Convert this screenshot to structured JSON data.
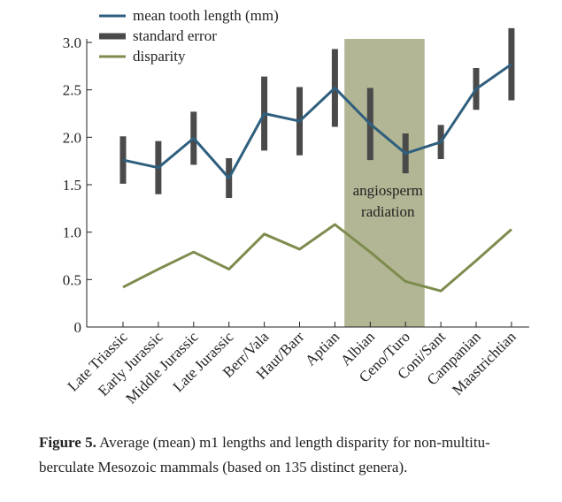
{
  "chart_data": {
    "type": "line",
    "categories": [
      "Late Triassic",
      "Early Jurassic",
      "Middle Jurassic",
      "Late Jurassic",
      "Berr/Vala",
      "Haut/Barr",
      "Aptian",
      "Albian",
      "Ceno/Turo",
      "Coni/Sant",
      "Campanian",
      "Maastrichtian"
    ],
    "series": [
      {
        "name": "mean tooth length (mm)",
        "color": "#2f5f7e",
        "values": [
          1.76,
          1.68,
          1.99,
          1.57,
          2.25,
          2.17,
          2.52,
          2.14,
          1.83,
          1.95,
          2.51,
          2.77
        ]
      },
      {
        "name": "standard error",
        "color": "#4a4a4a",
        "kind": "errorbar",
        "values": [
          0.25,
          0.28,
          0.28,
          0.21,
          0.39,
          0.36,
          0.41,
          0.38,
          0.21,
          0.18,
          0.22,
          0.38
        ]
      },
      {
        "name": "disparity",
        "color": "#7d8c4e",
        "values": [
          0.42,
          0.61,
          0.79,
          0.61,
          0.98,
          0.82,
          1.08,
          0.79,
          0.48,
          0.38,
          0.7,
          1.03
        ]
      }
    ],
    "ylim": [
      0,
      3.0
    ],
    "yticks": [
      0,
      0.5,
      {
        "value": 1.0,
        "label": "1.0"
      },
      1.5,
      {
        "value": 2.0,
        "label": "2.0"
      },
      2.5,
      {
        "value": 3.0,
        "label": "3.0"
      }
    ],
    "annotation": {
      "text": [
        "angiosperm",
        "radiation"
      ],
      "span": [
        "Albian",
        "Ceno/Turo"
      ],
      "color": "#b3b694"
    },
    "legend": "top-left",
    "caption": {
      "label": "Figure 5.",
      "lines": [
        " Average (mean) m1 lengths and length disparity for non-multitu-",
        "berculate Mesozoic mammals (based on 135 distinct genera)."
      ]
    }
  }
}
